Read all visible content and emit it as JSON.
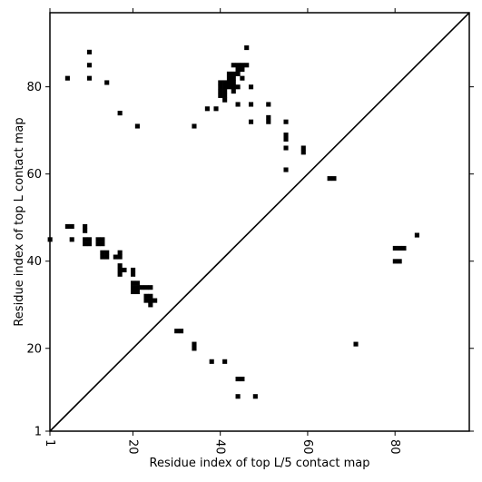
{
  "chart_data": {
    "type": "scatter",
    "subtype": "contact-map",
    "xlabel": "Residue index of top L/5 contact map",
    "ylabel": "Residue index of top L contact map",
    "xlim": [
      1,
      97
    ],
    "ylim": [
      1,
      97
    ],
    "x_ticks": [
      1,
      20,
      40,
      60,
      80
    ],
    "y_ticks": [
      1,
      20,
      40,
      60,
      80
    ],
    "x_tick_labels": [
      "1",
      "20",
      "40",
      "60",
      "80"
    ],
    "y_tick_labels": [
      "1",
      "20",
      "40",
      "60",
      "80"
    ],
    "diagonal_line": true,
    "grid": false,
    "legend": "none",
    "colors": {
      "marks": "#000000",
      "background": "#ffffff",
      "frame": "#000000"
    },
    "series": [
      {
        "region": "upper-left triangle (top L contacts)",
        "points": [
          [
            5,
            82
          ],
          [
            10,
            82
          ],
          [
            10,
            85
          ],
          [
            10,
            88
          ],
          [
            14,
            81
          ],
          [
            17,
            74
          ],
          [
            21,
            71
          ],
          [
            34,
            71
          ],
          [
            37,
            75
          ],
          [
            39,
            75
          ],
          [
            40,
            78
          ],
          [
            40,
            79
          ],
          [
            40,
            80
          ],
          [
            40,
            81
          ],
          [
            41,
            77
          ],
          [
            41,
            78
          ],
          [
            41,
            79
          ],
          [
            41,
            80
          ],
          [
            41,
            81
          ],
          [
            42,
            80
          ],
          [
            42,
            81
          ],
          [
            42,
            82
          ],
          [
            42,
            83
          ],
          [
            43,
            79
          ],
          [
            43,
            80
          ],
          [
            43,
            81
          ],
          [
            43,
            82
          ],
          [
            43,
            83
          ],
          [
            43,
            85
          ],
          [
            44,
            80
          ],
          [
            44,
            83
          ],
          [
            44,
            84
          ],
          [
            44,
            85
          ],
          [
            44,
            76
          ],
          [
            45,
            82
          ],
          [
            45,
            84
          ],
          [
            45,
            85
          ],
          [
            46,
            85
          ],
          [
            46,
            89
          ],
          [
            47,
            80
          ],
          [
            47,
            76
          ],
          [
            47,
            72
          ],
          [
            51,
            76
          ],
          [
            51,
            73
          ],
          [
            51,
            72
          ],
          [
            55,
            72
          ],
          [
            55,
            69
          ],
          [
            55,
            68
          ],
          [
            55,
            66
          ],
          [
            55,
            61
          ],
          [
            59,
            66
          ],
          [
            59,
            65
          ],
          [
            65,
            59
          ],
          [
            66,
            59
          ],
          [
            1,
            45
          ],
          [
            5,
            48
          ],
          [
            6,
            48
          ],
          [
            6,
            45
          ],
          [
            9,
            48
          ],
          [
            9,
            47
          ],
          [
            9,
            45
          ],
          [
            9,
            44
          ],
          [
            10,
            45
          ],
          [
            10,
            44
          ],
          [
            12,
            45
          ],
          [
            12,
            44
          ],
          [
            13,
            45
          ],
          [
            13,
            44
          ],
          [
            13,
            42
          ],
          [
            13,
            41
          ],
          [
            14,
            42
          ],
          [
            14,
            41
          ],
          [
            16,
            41
          ],
          [
            17,
            42
          ],
          [
            17,
            41
          ],
          [
            17,
            39
          ],
          [
            17,
            38
          ],
          [
            17,
            37
          ],
          [
            18,
            38
          ],
          [
            20,
            38
          ],
          [
            20,
            37
          ],
          [
            20,
            35
          ],
          [
            20,
            34
          ],
          [
            20,
            33
          ],
          [
            21,
            35
          ],
          [
            21,
            34
          ],
          [
            21,
            33
          ],
          [
            22,
            34
          ],
          [
            23,
            34
          ],
          [
            24,
            34
          ],
          [
            23,
            32
          ],
          [
            23,
            31
          ],
          [
            24,
            32
          ],
          [
            24,
            31
          ],
          [
            24,
            30
          ],
          [
            25,
            31
          ],
          [
            30,
            24
          ],
          [
            31,
            24
          ]
        ]
      },
      {
        "region": "lower-right triangle (top L/5 contacts)",
        "points": [
          [
            34,
            21
          ],
          [
            34,
            20
          ],
          [
            38,
            17
          ],
          [
            41,
            17
          ],
          [
            44,
            13
          ],
          [
            45,
            13
          ],
          [
            44,
            9
          ],
          [
            48,
            9
          ],
          [
            71,
            21
          ],
          [
            80,
            43
          ],
          [
            81,
            43
          ],
          [
            82,
            43
          ],
          [
            80,
            40
          ],
          [
            81,
            40
          ],
          [
            85,
            46
          ]
        ]
      }
    ]
  }
}
